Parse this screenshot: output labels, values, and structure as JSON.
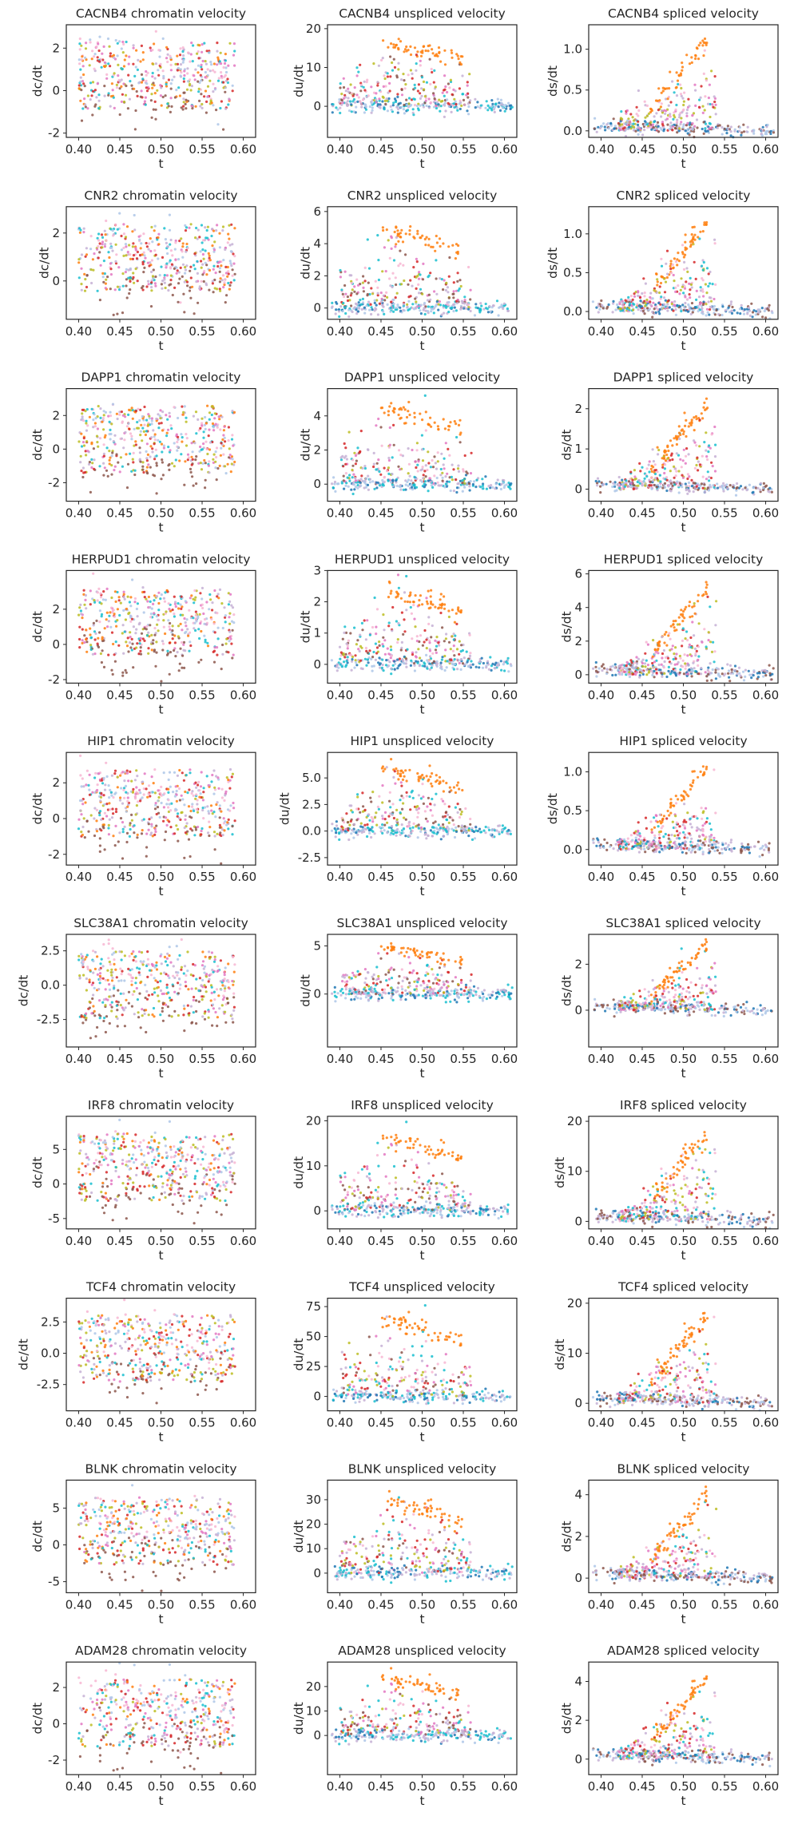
{
  "figure": {
    "colors": [
      "#ff7f0e",
      "#d62728",
      "#8c564b",
      "#e377c2",
      "#17becf",
      "#bcbd22",
      "#aec7e8",
      "#c5b0d5",
      "#f7b6d2",
      "#1f77b4"
    ],
    "x_ticks": [
      "0.40",
      "0.45",
      "0.50",
      "0.55",
      "0.60"
    ]
  },
  "chart_data": [
    {
      "type": "scatter",
      "title": "CACNB4 chromatin velocity",
      "xlabel": "t",
      "ylabel": "dc/dt",
      "xlim": [
        0.385,
        0.615
      ],
      "ylim": [
        -2.2,
        3.1
      ],
      "yticks": [
        "-2",
        "0",
        "2"
      ],
      "ytick_values": [
        -2,
        0,
        2
      ],
      "kind": "chromatin"
    },
    {
      "type": "scatter",
      "title": "CACNB4 unspliced velocity",
      "xlabel": "t",
      "ylabel": "du/dt",
      "xlim": [
        0.385,
        0.615
      ],
      "ylim": [
        -8,
        21
      ],
      "yticks": [
        "0",
        "10",
        "20"
      ],
      "ytick_values": [
        0,
        10,
        20
      ],
      "kind": "unspliced"
    },
    {
      "type": "scatter",
      "title": "CACNB4 spliced velocity",
      "xlabel": "t",
      "ylabel": "ds/dt",
      "xlim": [
        0.385,
        0.615
      ],
      "ylim": [
        -0.08,
        1.3
      ],
      "yticks": [
        "0.0",
        "0.5",
        "1.0"
      ],
      "ytick_values": [
        0,
        0.5,
        1.0
      ],
      "kind": "spliced"
    },
    {
      "type": "scatter",
      "title": "CNR2 chromatin velocity",
      "xlabel": "t",
      "ylabel": "dc/dt",
      "xlim": [
        0.385,
        0.615
      ],
      "ylim": [
        -1.6,
        3.1
      ],
      "yticks": [
        "0",
        "2"
      ],
      "ytick_values": [
        0,
        2
      ],
      "kind": "chromatin"
    },
    {
      "type": "scatter",
      "title": "CNR2 unspliced velocity",
      "xlabel": "t",
      "ylabel": "du/dt",
      "xlim": [
        0.385,
        0.615
      ],
      "ylim": [
        -0.7,
        6.3
      ],
      "yticks": [
        "0",
        "2",
        "4",
        "6"
      ],
      "ytick_values": [
        0,
        2,
        4,
        6
      ],
      "kind": "unspliced"
    },
    {
      "type": "scatter",
      "title": "CNR2 spliced velocity",
      "xlabel": "t",
      "ylabel": "ds/dt",
      "xlim": [
        0.385,
        0.615
      ],
      "ylim": [
        -0.1,
        1.35
      ],
      "yticks": [
        "0.0",
        "0.5",
        "1.0"
      ],
      "ytick_values": [
        0,
        0.5,
        1.0
      ],
      "kind": "spliced"
    },
    {
      "type": "scatter",
      "title": "DAPP1 chromatin velocity",
      "xlabel": "t",
      "ylabel": "dc/dt",
      "xlim": [
        0.385,
        0.615
      ],
      "ylim": [
        -3.1,
        3.6
      ],
      "yticks": [
        "-2",
        "0",
        "2"
      ],
      "ytick_values": [
        -2,
        0,
        2
      ],
      "kind": "chromatin"
    },
    {
      "type": "scatter",
      "title": "DAPP1 unspliced velocity",
      "xlabel": "t",
      "ylabel": "du/dt",
      "xlim": [
        0.385,
        0.615
      ],
      "ylim": [
        -1.0,
        5.6
      ],
      "yticks": [
        "0",
        "2",
        "4"
      ],
      "ytick_values": [
        0,
        2,
        4
      ],
      "kind": "unspliced"
    },
    {
      "type": "scatter",
      "title": "DAPP1 spliced velocity",
      "xlabel": "t",
      "ylabel": "ds/dt",
      "xlim": [
        0.385,
        0.615
      ],
      "ylim": [
        -0.3,
        2.5
      ],
      "yticks": [
        "0",
        "1",
        "2"
      ],
      "ytick_values": [
        0,
        1,
        2
      ],
      "kind": "spliced"
    },
    {
      "type": "scatter",
      "title": "HERPUD1 chromatin velocity",
      "xlabel": "t",
      "ylabel": "dc/dt",
      "xlim": [
        0.385,
        0.615
      ],
      "ylim": [
        -2.2,
        4.2
      ],
      "yticks": [
        "-2",
        "0",
        "2"
      ],
      "ytick_values": [
        -2,
        0,
        2
      ],
      "kind": "chromatin"
    },
    {
      "type": "scatter",
      "title": "HERPUD1 unspliced velocity",
      "xlabel": "t",
      "ylabel": "du/dt",
      "xlim": [
        0.385,
        0.615
      ],
      "ylim": [
        -0.6,
        3.0
      ],
      "yticks": [
        "0",
        "1",
        "2",
        "3"
      ],
      "ytick_values": [
        0,
        1,
        2,
        3
      ],
      "kind": "unspliced"
    },
    {
      "type": "scatter",
      "title": "HERPUD1 spliced velocity",
      "xlabel": "t",
      "ylabel": "ds/dt",
      "xlim": [
        0.385,
        0.615
      ],
      "ylim": [
        -0.5,
        6.2
      ],
      "yticks": [
        "0",
        "2",
        "4",
        "6"
      ],
      "ytick_values": [
        0,
        2,
        4,
        6
      ],
      "kind": "spliced"
    },
    {
      "type": "scatter",
      "title": "HIP1 chromatin velocity",
      "xlabel": "t",
      "ylabel": "dc/dt",
      "xlim": [
        0.385,
        0.615
      ],
      "ylim": [
        -2.6,
        3.7
      ],
      "yticks": [
        "-2",
        "0",
        "2"
      ],
      "ytick_values": [
        -2,
        0,
        2
      ],
      "kind": "chromatin"
    },
    {
      "type": "scatter",
      "title": "HIP1 unspliced velocity",
      "xlabel": "t",
      "ylabel": "du/dt",
      "xlim": [
        0.385,
        0.615
      ],
      "ylim": [
        -3.2,
        7.4
      ],
      "yticks": [
        "-2.5",
        "0.0",
        "2.5",
        "5.0"
      ],
      "ytick_values": [
        -2.5,
        0,
        2.5,
        5
      ],
      "kind": "unspliced"
    },
    {
      "type": "scatter",
      "title": "HIP1 spliced velocity",
      "xlabel": "t",
      "ylabel": "ds/dt",
      "xlim": [
        0.385,
        0.615
      ],
      "ylim": [
        -0.2,
        1.25
      ],
      "yticks": [
        "0.0",
        "0.5",
        "1.0"
      ],
      "ytick_values": [
        0,
        0.5,
        1.0
      ],
      "kind": "spliced"
    },
    {
      "type": "scatter",
      "title": "SLC38A1 chromatin velocity",
      "xlabel": "t",
      "ylabel": "dc/dt",
      "xlim": [
        0.385,
        0.615
      ],
      "ylim": [
        -4.5,
        3.7
      ],
      "yticks": [
        "-2.5",
        "0.0",
        "2.5"
      ],
      "ytick_values": [
        -2.5,
        0,
        2.5
      ],
      "kind": "chromatin"
    },
    {
      "type": "scatter",
      "title": "SLC38A1 unspliced velocity",
      "xlabel": "t",
      "ylabel": "du/dt",
      "xlim": [
        0.385,
        0.615
      ],
      "ylim": [
        -5.5,
        6.2
      ],
      "yticks": [
        "0",
        "5"
      ],
      "ytick_values": [
        0,
        5
      ],
      "kind": "unspliced"
    },
    {
      "type": "scatter",
      "title": "SLC38A1 spliced velocity",
      "xlabel": "t",
      "ylabel": "ds/dt",
      "xlim": [
        0.385,
        0.615
      ],
      "ylim": [
        -1.6,
        3.3
      ],
      "yticks": [
        "0",
        "2"
      ],
      "ytick_values": [
        0,
        2
      ],
      "kind": "spliced"
    },
    {
      "type": "scatter",
      "title": "IRF8 chromatin velocity",
      "xlabel": "t",
      "ylabel": "dc/dt",
      "xlim": [
        0.385,
        0.615
      ],
      "ylim": [
        -6.5,
        9.8
      ],
      "yticks": [
        "-5",
        "0",
        "5"
      ],
      "ytick_values": [
        -5,
        0,
        5
      ],
      "kind": "chromatin"
    },
    {
      "type": "scatter",
      "title": "IRF8 unspliced velocity",
      "xlabel": "t",
      "ylabel": "du/dt",
      "xlim": [
        0.385,
        0.615
      ],
      "ylim": [
        -4,
        21
      ],
      "yticks": [
        "0",
        "10",
        "20"
      ],
      "ytick_values": [
        0,
        10,
        20
      ],
      "kind": "unspliced"
    },
    {
      "type": "scatter",
      "title": "IRF8 spliced velocity",
      "xlabel": "t",
      "ylabel": "ds/dt",
      "xlim": [
        0.385,
        0.615
      ],
      "ylim": [
        -1.5,
        21
      ],
      "yticks": [
        "0",
        "10",
        "20"
      ],
      "ytick_values": [
        0,
        10,
        20
      ],
      "kind": "spliced"
    },
    {
      "type": "scatter",
      "title": "TCF4 chromatin velocity",
      "xlabel": "t",
      "ylabel": "dc/dt",
      "xlim": [
        0.385,
        0.615
      ],
      "ylim": [
        -4.6,
        4.4
      ],
      "yticks": [
        "-2.5",
        "0.0",
        "2.5"
      ],
      "ytick_values": [
        -2.5,
        0,
        2.5
      ],
      "kind": "chromatin"
    },
    {
      "type": "scatter",
      "title": "TCF4 unspliced velocity",
      "xlabel": "t",
      "ylabel": "du/dt",
      "xlim": [
        0.385,
        0.615
      ],
      "ylim": [
        -12,
        82
      ],
      "yticks": [
        "0",
        "25",
        "50",
        "75"
      ],
      "ytick_values": [
        0,
        25,
        50,
        75
      ],
      "kind": "unspliced"
    },
    {
      "type": "scatter",
      "title": "TCF4 spliced velocity",
      "xlabel": "t",
      "ylabel": "ds/dt",
      "xlim": [
        0.385,
        0.615
      ],
      "ylim": [
        -1.5,
        21
      ],
      "yticks": [
        "0",
        "10",
        "20"
      ],
      "ytick_values": [
        0,
        10,
        20
      ],
      "kind": "spliced"
    },
    {
      "type": "scatter",
      "title": "BLNK chromatin velocity",
      "xlabel": "t",
      "ylabel": "dc/dt",
      "xlim": [
        0.385,
        0.615
      ],
      "ylim": [
        -6.5,
        8.8
      ],
      "yticks": [
        "-5",
        "0",
        "5"
      ],
      "ytick_values": [
        -5,
        0,
        5
      ],
      "kind": "chromatin"
    },
    {
      "type": "scatter",
      "title": "BLNK unspliced velocity",
      "xlabel": "t",
      "ylabel": "du/dt",
      "xlim": [
        0.385,
        0.615
      ],
      "ylim": [
        -8,
        38
      ],
      "yticks": [
        "0",
        "10",
        "20",
        "30"
      ],
      "ytick_values": [
        0,
        10,
        20,
        30
      ],
      "kind": "unspliced"
    },
    {
      "type": "scatter",
      "title": "BLNK spliced velocity",
      "xlabel": "t",
      "ylabel": "ds/dt",
      "xlim": [
        0.385,
        0.615
      ],
      "ylim": [
        -0.7,
        4.7
      ],
      "yticks": [
        "0",
        "2",
        "4"
      ],
      "ytick_values": [
        0,
        2,
        4
      ],
      "kind": "spliced"
    },
    {
      "type": "scatter",
      "title": "ADAM28 chromatin velocity",
      "xlabel": "t",
      "ylabel": "dc/dt",
      "xlim": [
        0.385,
        0.615
      ],
      "ylim": [
        -2.8,
        3.4
      ],
      "yticks": [
        "-2",
        "0",
        "2"
      ],
      "ytick_values": [
        -2,
        0,
        2
      ],
      "kind": "chromatin"
    },
    {
      "type": "scatter",
      "title": "ADAM28 unspliced velocity",
      "xlabel": "t",
      "ylabel": "du/dt",
      "xlim": [
        0.385,
        0.615
      ],
      "ylim": [
        -16,
        30
      ],
      "yticks": [
        "0",
        "10",
        "20"
      ],
      "ytick_values": [
        0,
        10,
        20
      ],
      "kind": "unspliced"
    },
    {
      "type": "scatter",
      "title": "ADAM28 spliced velocity",
      "xlabel": "t",
      "ylabel": "ds/dt",
      "xlim": [
        0.385,
        0.615
      ],
      "ylim": [
        -0.8,
        5.0
      ],
      "yticks": [
        "0",
        "2",
        "4"
      ],
      "ytick_values": [
        0,
        2,
        4
      ],
      "kind": "spliced"
    }
  ]
}
